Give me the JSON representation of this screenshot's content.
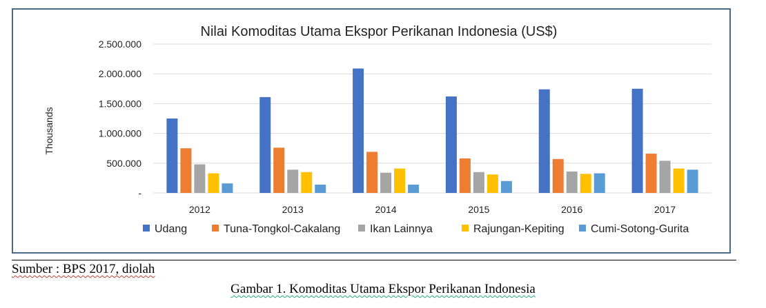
{
  "chart_data": {
    "type": "bar",
    "title": "Nilai Komoditas Utama Ekspor Perikanan Indonesia (US$)",
    "ylabel": "Thousands",
    "ylim": [
      0,
      2500000
    ],
    "yticks": [
      "-",
      "500.000",
      "1.000.000",
      "1.500.000",
      "2.000.000",
      "2.500.000"
    ],
    "ytick_values": [
      0,
      500000,
      1000000,
      1500000,
      2000000,
      2500000
    ],
    "categories": [
      "2012",
      "2013",
      "2014",
      "2015",
      "2016",
      "2017"
    ],
    "grid": true,
    "legend_position": "bottom",
    "series": [
      {
        "name": "Udang",
        "color": "#4472C4",
        "values": [
          1250000,
          1610000,
          2090000,
          1620000,
          1740000,
          1750000
        ]
      },
      {
        "name": "Tuna-Tongkol-Cakalang",
        "color": "#ED7D31",
        "values": [
          750000,
          760000,
          690000,
          580000,
          570000,
          660000
        ]
      },
      {
        "name": "Ikan Lainnya",
        "color": "#A5A5A5",
        "values": [
          480000,
          390000,
          340000,
          350000,
          360000,
          540000
        ]
      },
      {
        "name": "Rajungan-Kepiting",
        "color": "#FFC000",
        "values": [
          330000,
          350000,
          410000,
          310000,
          320000,
          410000
        ]
      },
      {
        "name": "Cumi-Sotong-Gurita",
        "color": "#5B9BD5",
        "values": [
          160000,
          140000,
          140000,
          200000,
          330000,
          390000
        ]
      }
    ]
  },
  "source": "Sumber : BPS 2017, diolah",
  "caption": "Gambar 1. Komoditas Utama Ekspor Perikanan Indonesia"
}
